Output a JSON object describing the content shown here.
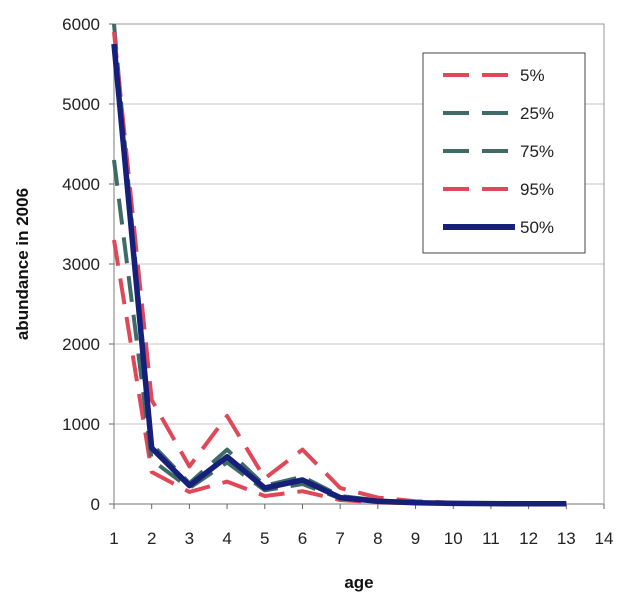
{
  "chart_data": {
    "type": "line",
    "title": "",
    "xlabel": "age",
    "ylabel": "abundance in 2006",
    "xlim": [
      1,
      14
    ],
    "ylim": [
      0,
      6000
    ],
    "x_ticks": [
      1,
      2,
      3,
      4,
      5,
      6,
      7,
      8,
      9,
      10,
      11,
      12,
      13,
      14
    ],
    "y_ticks": [
      0,
      1000,
      2000,
      3000,
      4000,
      5000,
      6000
    ],
    "grid": "horizontal",
    "legend_position": "top-right",
    "series": [
      {
        "name": "5%",
        "color": "#e0485a",
        "style": "dashed",
        "x": [
          1,
          2,
          3,
          4,
          5,
          6,
          7,
          8,
          9,
          10,
          11,
          12,
          13
        ],
        "values": [
          3300,
          400,
          150,
          280,
          100,
          160,
          50,
          20,
          10,
          5,
          3,
          2,
          1
        ]
      },
      {
        "name": "25%",
        "color": "#3f6b66",
        "style": "dashed",
        "x": [
          1,
          2,
          3,
          4,
          5,
          6,
          7,
          8,
          9,
          10,
          11,
          12,
          13
        ],
        "values": [
          4300,
          550,
          200,
          520,
          170,
          250,
          70,
          30,
          14,
          7,
          4,
          3,
          2
        ]
      },
      {
        "name": "75%",
        "color": "#3f6b66",
        "style": "dashed",
        "x": [
          1,
          2,
          3,
          4,
          5,
          6,
          7,
          8,
          9,
          10,
          11,
          12,
          13
        ],
        "values": [
          6000,
          750,
          260,
          680,
          230,
          340,
          100,
          45,
          20,
          10,
          6,
          4,
          3
        ]
      },
      {
        "name": "95%",
        "color": "#e0485a",
        "style": "dashed",
        "x": [
          1,
          2,
          3,
          4,
          5,
          6,
          7,
          8,
          9,
          10,
          11,
          12,
          13
        ],
        "values": [
          5900,
          1300,
          470,
          1100,
          320,
          680,
          200,
          80,
          35,
          15,
          8,
          5,
          3
        ]
      },
      {
        "name": "50%",
        "color": "#16207a",
        "style": "solid",
        "x": [
          1,
          2,
          3,
          4,
          5,
          6,
          7,
          8,
          9,
          10,
          11,
          12,
          13
        ],
        "values": [
          5750,
          700,
          230,
          590,
          200,
          300,
          80,
          35,
          15,
          8,
          5,
          3,
          2
        ]
      }
    ]
  }
}
